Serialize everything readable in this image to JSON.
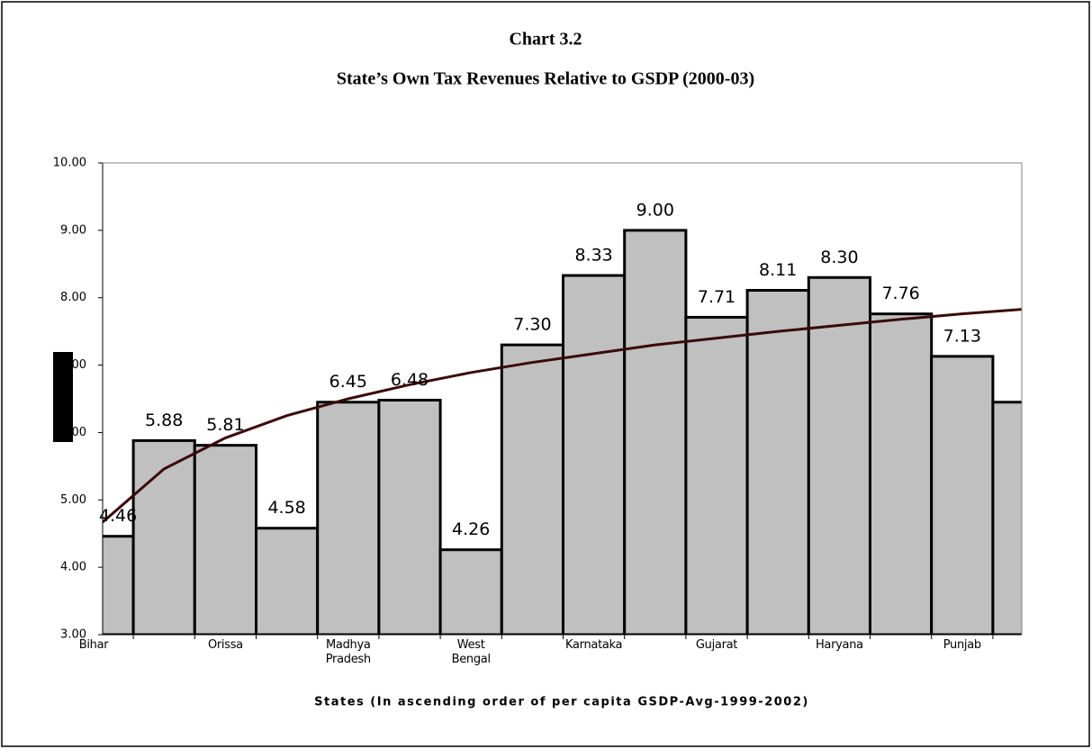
{
  "chart_data": {
    "type": "bar",
    "title": "Chart 3.2",
    "subtitle": "State’s Own Tax Revenues Relative to GSDP (2000-03)",
    "x_label": "States (In ascending order of per capita GSDP-Avg-1999-2002)",
    "categories": [
      "Bihar",
      null,
      "Orissa",
      null,
      "Madhya Pradesh",
      null,
      "West Bengal",
      null,
      "Karnataka",
      null,
      "Gujarat",
      null,
      "Haryana",
      null,
      "Punjab",
      null
    ],
    "values": [
      4.46,
      5.88,
      5.81,
      4.58,
      6.45,
      6.48,
      4.26,
      7.3,
      8.33,
      9.0,
      7.71,
      8.11,
      8.3,
      7.76,
      7.13,
      6.45
    ],
    "value_labels": [
      "4.46",
      "5.88",
      "5.81",
      "4.58",
      "6.45",
      "6.48",
      "4.26",
      "7.30",
      "8.33",
      "9.00",
      "7.71",
      "8.11",
      "8.30",
      "7.76",
      "7.13",
      null
    ],
    "color": "#c0c0c0",
    "trendline": {
      "color": "#3a0a0a",
      "values": [
        4.67,
        5.46,
        5.92,
        6.25,
        6.5,
        6.71,
        6.89,
        7.04,
        7.17,
        7.3,
        7.4,
        7.5,
        7.59,
        7.68,
        7.76,
        7.83
      ]
    },
    "ylim": [
      3,
      10
    ],
    "yticks": [
      {
        "value": 3,
        "label": "3.00"
      },
      {
        "value": 4,
        "label": "4.00"
      },
      {
        "value": 5,
        "label": "5.00"
      },
      {
        "value": 6,
        "label": "6.00"
      },
      {
        "value": 7,
        "label": "7.00"
      },
      {
        "value": 8,
        "label": "8.00"
      },
      {
        "value": 9,
        "label": "9.00"
      },
      {
        "value": 10,
        "label": "10.00"
      }
    ],
    "grid": false
  }
}
